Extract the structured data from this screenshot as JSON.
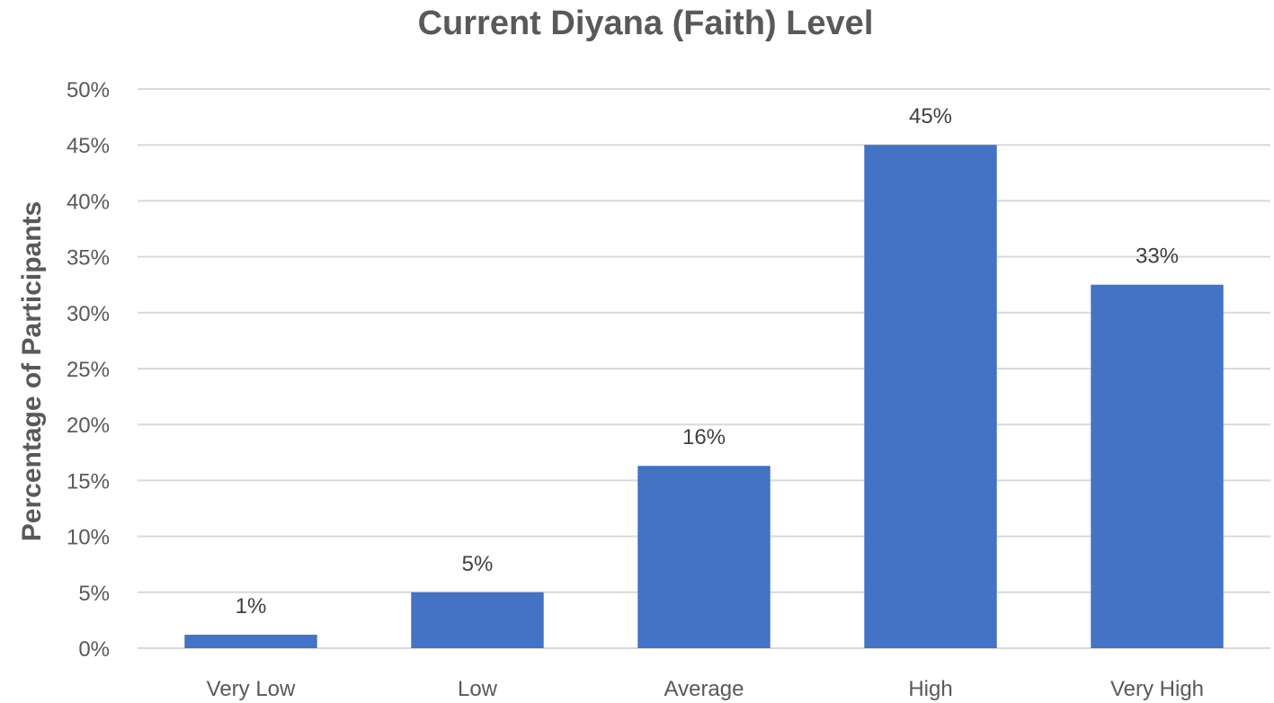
{
  "chart_data": {
    "type": "bar",
    "title": "Current Diyana (Faith) Level",
    "xlabel": "",
    "ylabel": "Percentage of Participants",
    "categories": [
      "Very Low",
      "Low",
      "Average",
      "High",
      "Very High"
    ],
    "values": [
      1.2,
      5.0,
      16.3,
      45.0,
      32.5
    ],
    "data_labels": [
      "1%",
      "5%",
      "16%",
      "45%",
      "33%"
    ],
    "y_ticks": [
      0,
      5,
      10,
      15,
      20,
      25,
      30,
      35,
      40,
      45,
      50
    ],
    "y_tick_labels": [
      "0%",
      "5%",
      "10%",
      "15%",
      "20%",
      "25%",
      "30%",
      "35%",
      "40%",
      "45%",
      "50%"
    ],
    "ylim": [
      0,
      50
    ],
    "grid": true,
    "legend": "none",
    "bar_color": "#4472c4"
  }
}
